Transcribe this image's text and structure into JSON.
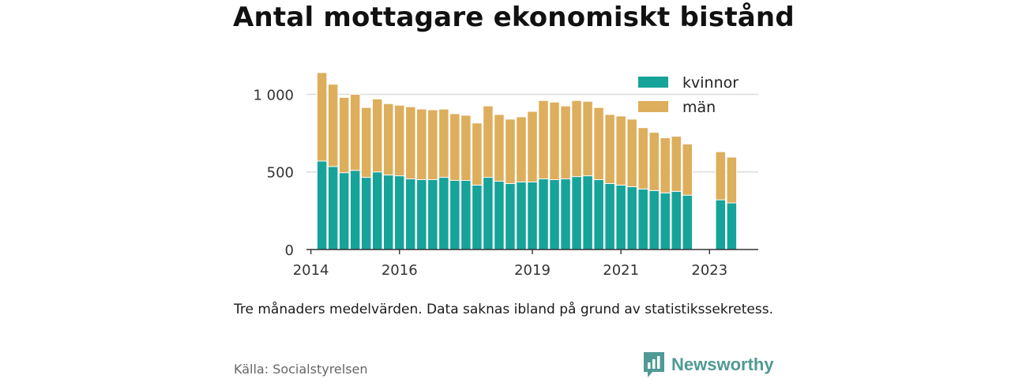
{
  "title": "Antal mottagare ekonomiskt bistånd",
  "note": "Tre månaders medelvärden. Data saknas ibland på grund av statistikssekretess.",
  "source": "Källa: Socialstyrelsen",
  "brand": {
    "name": "Newsworthy",
    "icon": "bar-chart-speech-bubble-icon",
    "color": "#4f9a94"
  },
  "chart_data": {
    "type": "bar",
    "stacked": true,
    "xlim": [
      2013.9,
      2024.1
    ],
    "ylim": [
      0,
      1150
    ],
    "grid": true,
    "legend_position": "top-right",
    "x_ticks": [
      2014,
      2016,
      2019,
      2021,
      2023
    ],
    "x_tick_labels": [
      "2014",
      "2016",
      "2019",
      "2021",
      "2023"
    ],
    "y_ticks": [
      0,
      500,
      1000
    ],
    "y_tick_labels": [
      "0",
      "500",
      "1 000"
    ],
    "x": [
      2014.25,
      2014.5,
      2014.75,
      2015.0,
      2015.25,
      2015.5,
      2015.75,
      2016.0,
      2016.25,
      2016.5,
      2016.75,
      2017.0,
      2017.25,
      2017.5,
      2017.75,
      2018.0,
      2018.25,
      2018.5,
      2018.75,
      2019.0,
      2019.25,
      2019.5,
      2019.75,
      2020.0,
      2020.25,
      2020.5,
      2020.75,
      2021.0,
      2021.25,
      2021.5,
      2021.75,
      2022.0,
      2022.25,
      2022.5,
      2023.25,
      2023.5
    ],
    "series": [
      {
        "name": "kvinnor",
        "color": "#16a39a",
        "values": [
          570,
          535,
          495,
          510,
          465,
          500,
          480,
          475,
          455,
          450,
          450,
          465,
          445,
          445,
          415,
          465,
          440,
          425,
          435,
          435,
          455,
          450,
          455,
          470,
          475,
          450,
          425,
          415,
          405,
          390,
          380,
          365,
          375,
          350,
          320,
          300
        ]
      },
      {
        "name": "män",
        "color": "#ddae5c",
        "values": [
          570,
          530,
          485,
          490,
          450,
          470,
          460,
          455,
          465,
          455,
          450,
          440,
          430,
          420,
          400,
          460,
          430,
          415,
          420,
          455,
          505,
          500,
          470,
          490,
          480,
          465,
          445,
          445,
          435,
          395,
          375,
          355,
          355,
          330,
          310,
          295
        ]
      }
    ]
  }
}
